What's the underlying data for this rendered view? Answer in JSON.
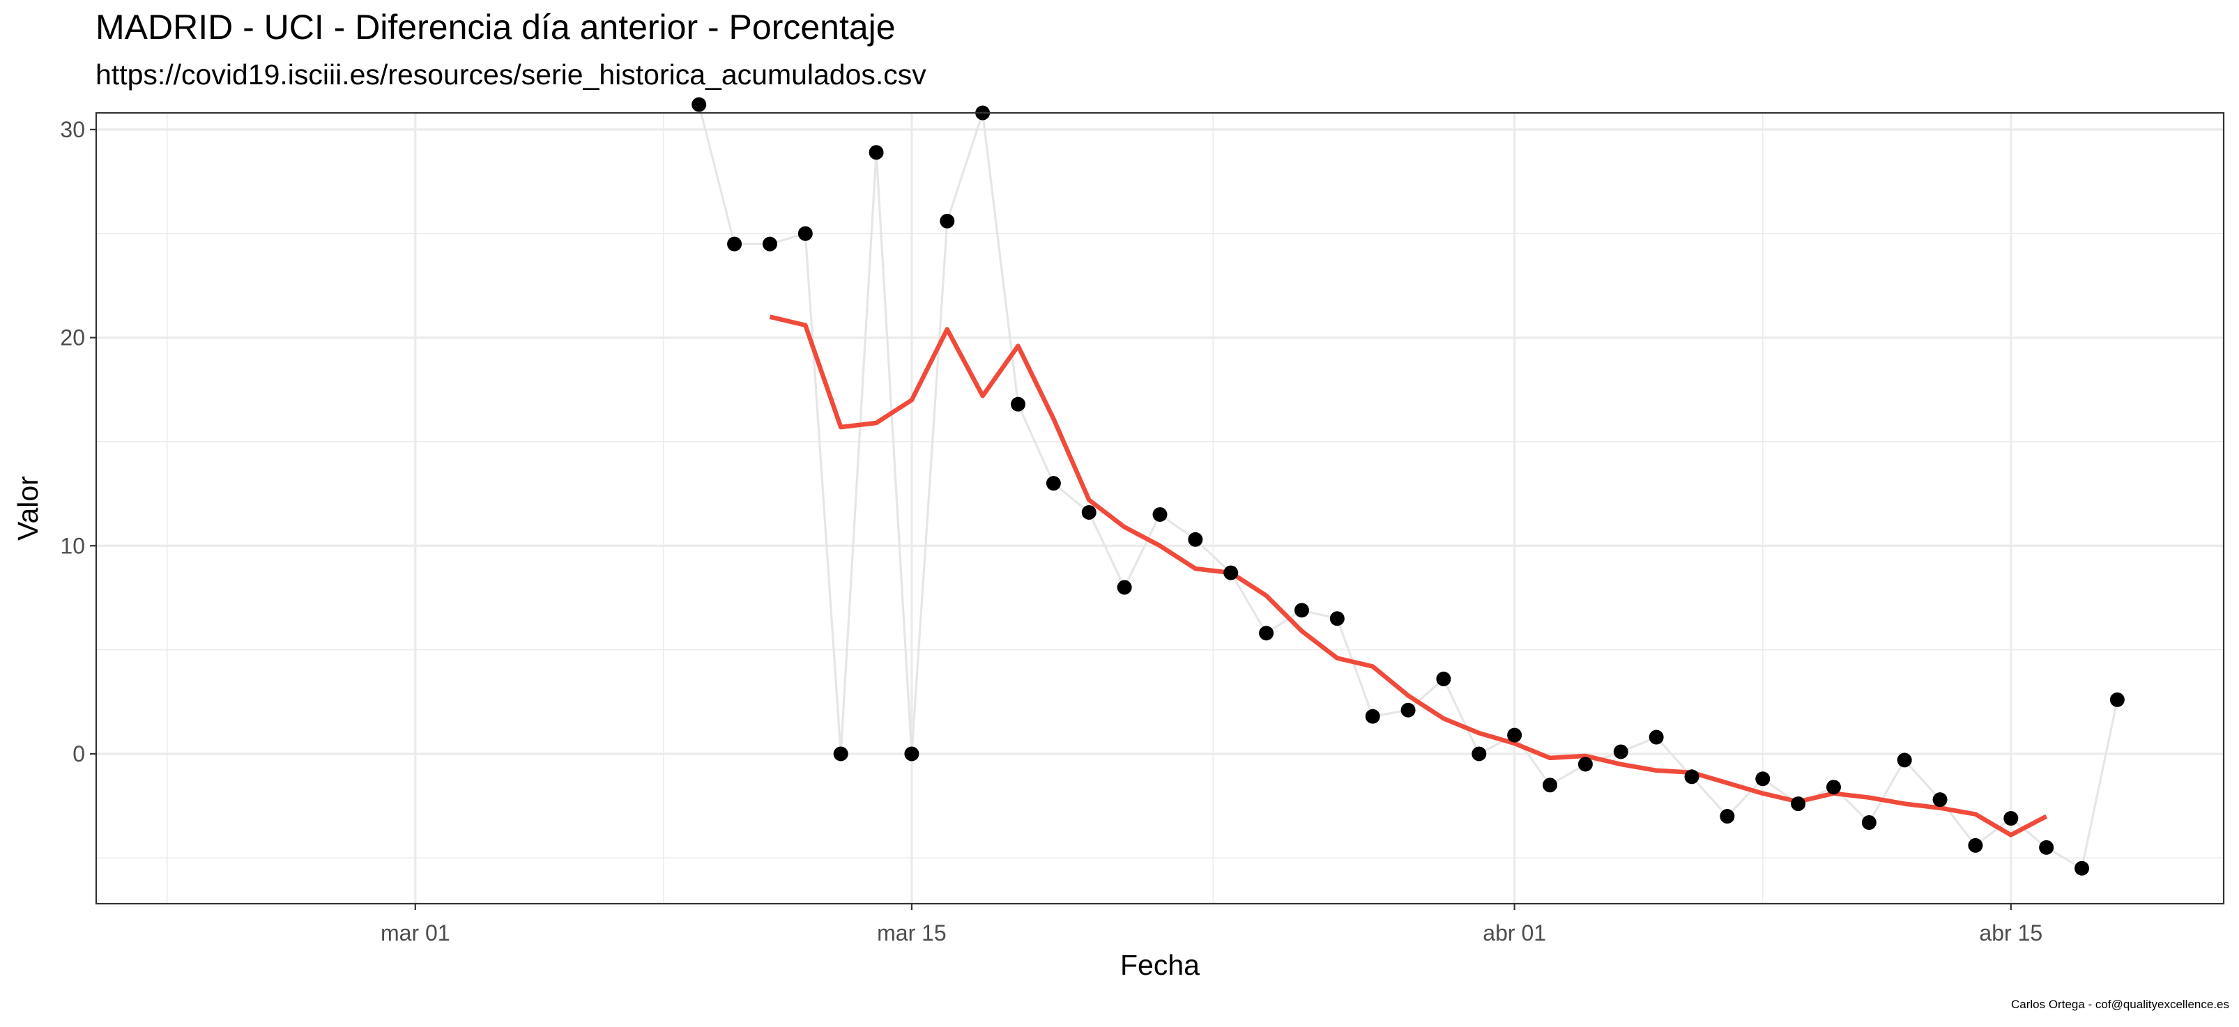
{
  "title": "MADRID - UCI - Diferencia día anterior - Porcentaje",
  "subtitle": "https://covid19.isciii.es/resources/serie_historica_acumulados.csv",
  "caption": "Carlos Ortega - cof@qualityexcellence.es",
  "colors": {
    "points": "#000000",
    "connector": "#e6e6e6",
    "rolling_line": "#f04a3a",
    "grid": "#ebebeb",
    "panel_border": "#333333"
  },
  "chart_data": {
    "type": "line",
    "xlabel": "Fecha",
    "ylabel": "Valor",
    "xlim": [
      "2020-02-21",
      "2020-04-21"
    ],
    "ylim": [
      -7.2,
      30.8
    ],
    "x_ticks": [
      {
        "date": "2020-03-01",
        "label": "mar 01"
      },
      {
        "date": "2020-03-15",
        "label": "mar 15"
      },
      {
        "date": "2020-04-01",
        "label": "abr 01"
      },
      {
        "date": "2020-04-15",
        "label": "abr 15"
      }
    ],
    "y_ticks": [
      0,
      10,
      20,
      30
    ],
    "grid": true,
    "legend": "none",
    "series": [
      {
        "kind": "points_with_connector",
        "x": [
          "2020-03-09",
          "2020-03-10",
          "2020-03-11",
          "2020-03-12",
          "2020-03-13",
          "2020-03-14",
          "2020-03-15",
          "2020-03-16",
          "2020-03-17",
          "2020-03-18",
          "2020-03-19",
          "2020-03-20",
          "2020-03-21",
          "2020-03-22",
          "2020-03-23",
          "2020-03-24",
          "2020-03-25",
          "2020-03-26",
          "2020-03-27",
          "2020-03-28",
          "2020-03-29",
          "2020-03-30",
          "2020-03-31",
          "2020-04-01",
          "2020-04-02",
          "2020-04-03",
          "2020-04-04",
          "2020-04-05",
          "2020-04-06",
          "2020-04-07",
          "2020-04-08",
          "2020-04-09",
          "2020-04-10",
          "2020-04-11",
          "2020-04-12",
          "2020-04-13",
          "2020-04-14",
          "2020-04-15",
          "2020-04-16",
          "2020-04-17",
          "2020-04-18"
        ],
        "y": [
          31.2,
          24.5,
          24.5,
          25.0,
          0.0,
          28.9,
          0.0,
          25.6,
          30.8,
          16.8,
          13.0,
          11.6,
          8.0,
          11.5,
          10.3,
          8.7,
          5.8,
          6.9,
          6.5,
          1.8,
          2.1,
          3.6,
          0.0,
          0.9,
          -1.5,
          -0.5,
          0.1,
          0.8,
          -1.1,
          -3.0,
          -1.2,
          -2.4,
          -1.6,
          -3.3,
          -0.3,
          -2.2,
          -4.4,
          -3.1,
          -4.5,
          -5.5,
          2.6
        ]
      },
      {
        "kind": "rolling_mean",
        "x": [
          "2020-03-11",
          "2020-03-12",
          "2020-03-13",
          "2020-03-14",
          "2020-03-15",
          "2020-03-16",
          "2020-03-17",
          "2020-03-18",
          "2020-03-19",
          "2020-03-20",
          "2020-03-21",
          "2020-03-22",
          "2020-03-23",
          "2020-03-24",
          "2020-03-25",
          "2020-03-26",
          "2020-03-27",
          "2020-03-28",
          "2020-03-29",
          "2020-03-30",
          "2020-03-31",
          "2020-04-01",
          "2020-04-02",
          "2020-04-03",
          "2020-04-04",
          "2020-04-05",
          "2020-04-06",
          "2020-04-07",
          "2020-04-08",
          "2020-04-09",
          "2020-04-10",
          "2020-04-11",
          "2020-04-12",
          "2020-04-13",
          "2020-04-14",
          "2020-04-15",
          "2020-04-16"
        ],
        "y": [
          21.0,
          20.6,
          15.7,
          15.9,
          17.0,
          20.4,
          17.2,
          19.6,
          16.1,
          12.2,
          10.9,
          10.0,
          8.9,
          8.7,
          7.6,
          5.9,
          4.6,
          4.2,
          2.8,
          1.7,
          1.0,
          0.5,
          -0.2,
          -0.1,
          -0.5,
          -0.8,
          -0.9,
          -1.4,
          -1.9,
          -2.3,
          -1.9,
          -2.1,
          -2.4,
          -2.6,
          -2.9,
          -3.9,
          -3.0
        ]
      }
    ]
  }
}
